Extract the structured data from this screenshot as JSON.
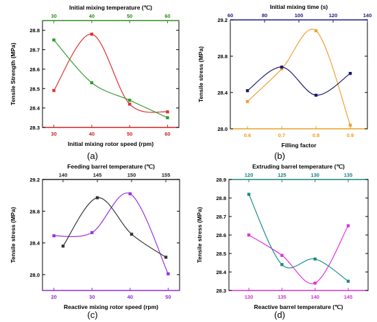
{
  "chart_data": [
    {
      "type": "line",
      "panel_label": "(a)",
      "ylabel": "Tensile Strength (MPa)",
      "bottom_axis": {
        "label": "Initial mixing rotor speed (rpm)",
        "ticks": [
          "30",
          "40",
          "50",
          "60"
        ],
        "color": "#cc2222"
      },
      "top_axis": {
        "label": "Initial mixing temperature (℃)",
        "ticks": [
          "30",
          "40",
          "50",
          "60"
        ],
        "color": "#2e8b1e"
      },
      "xlim": [
        27,
        63
      ],
      "ylim": [
        28.3,
        28.85
      ],
      "yticks": [
        "28.3",
        "28.4",
        "28.5",
        "28.6",
        "28.7",
        "28.8"
      ],
      "series": [
        {
          "axis": "bottom",
          "color": "#e03030",
          "x": [
            30,
            40,
            50,
            60
          ],
          "y": [
            28.49,
            28.78,
            28.42,
            28.38
          ]
        },
        {
          "axis": "top",
          "color": "#2e9a2e",
          "x": [
            30,
            40,
            50,
            60
          ],
          "y": [
            28.75,
            28.53,
            28.44,
            28.35
          ]
        }
      ]
    },
    {
      "type": "line",
      "panel_label": "(b)",
      "ylabel": "Tensile stress (MPa)",
      "bottom_axis": {
        "label": "Filling factor",
        "ticks": [
          "0.6",
          "0.7",
          "0.8",
          "0.9"
        ],
        "color": "#e8a020"
      },
      "top_axis": {
        "label": "Initial mixing time (s)",
        "ticks": [
          "60",
          "80",
          "100",
          "120",
          "140"
        ],
        "color": "#1a1a80"
      },
      "bottom_xlim": [
        0.55,
        0.95
      ],
      "top_xlim": [
        60,
        140
      ],
      "ylim": [
        28.0,
        29.2
      ],
      "yticks": [
        "28.0",
        "28.4",
        "28.8",
        "29.2"
      ],
      "series": [
        {
          "axis": "bottom",
          "color": "#f0a030",
          "x": [
            0.6,
            0.7,
            0.8,
            0.9
          ],
          "y": [
            28.3,
            28.66,
            29.08,
            28.04
          ]
        },
        {
          "axis": "top",
          "color": "#1a1a70",
          "x": [
            70,
            90,
            110,
            130
          ],
          "y": [
            28.42,
            28.68,
            28.37,
            28.61
          ]
        }
      ]
    },
    {
      "type": "line",
      "panel_label": "(c)",
      "ylabel": "Tensile stress (MPa)",
      "bottom_axis": {
        "label": "Reactive mixing rotor speed (rpm)",
        "ticks": [
          "20",
          "30",
          "40",
          "50"
        ],
        "color": "#8a2be2"
      },
      "top_axis": {
        "label": "Feeding barrel temperature (℃)",
        "ticks": [
          "140",
          "145",
          "150",
          "155"
        ],
        "color": "#222222"
      },
      "bottom_xlim": [
        17,
        53
      ],
      "top_xlim": [
        137,
        157
      ],
      "ylim": [
        27.8,
        29.2
      ],
      "yticks": [
        "28.0",
        "28.4",
        "28.8",
        "29.2"
      ],
      "series": [
        {
          "axis": "bottom",
          "color": "#9a30e0",
          "x": [
            20,
            30,
            40,
            50
          ],
          "y": [
            28.49,
            28.53,
            29.02,
            28.01
          ]
        },
        {
          "axis": "top",
          "color": "#333333",
          "x": [
            140,
            145,
            150,
            155
          ],
          "y": [
            28.36,
            28.97,
            28.51,
            28.22
          ]
        }
      ]
    },
    {
      "type": "line",
      "panel_label": "(d)",
      "ylabel": "Tensile stress (MPa)",
      "bottom_axis": {
        "label": "Reactive barrel temperature (℃)",
        "ticks": [
          "130",
          "135",
          "140",
          "145"
        ],
        "color": "#cc33cc"
      },
      "top_axis": {
        "label": "Extruding barrel temperature (℃)",
        "ticks": [
          "120",
          "125",
          "130",
          "135"
        ],
        "color": "#1a8080"
      },
      "bottom_xlim": [
        127,
        148
      ],
      "top_xlim": [
        117,
        138
      ],
      "ylim": [
        28.3,
        28.9
      ],
      "yticks": [
        "28.3",
        "28.4",
        "28.5",
        "28.6",
        "28.7",
        "28.8",
        "28.9"
      ],
      "series": [
        {
          "axis": "bottom",
          "color": "#e030e0",
          "x": [
            130,
            135,
            140,
            145
          ],
          "y": [
            28.6,
            28.49,
            28.34,
            28.65
          ]
        },
        {
          "axis": "top",
          "color": "#1a8a8a",
          "x": [
            120,
            125,
            130,
            135
          ],
          "y": [
            28.82,
            28.44,
            28.47,
            28.35
          ]
        }
      ]
    }
  ]
}
